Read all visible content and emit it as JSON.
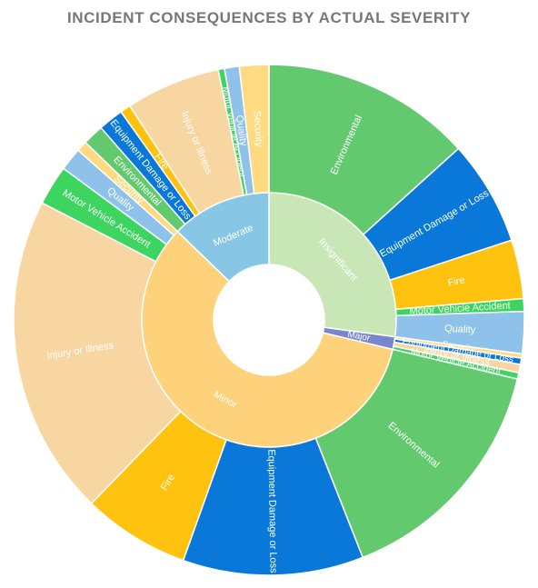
{
  "chart_data": {
    "type": "sunburst",
    "title": "INCIDENT CONSEQUENCES BY ACTUAL SEVERITY",
    "colors": {
      "Insignificant": "#c8e6b6",
      "Major": "#7986cb",
      "Minor": "#fdd27a",
      "Moderate": "#87c6e4",
      "Environmental": "#63c96e",
      "Equipment Damage or Loss": "#0a78d8",
      "Fire": "#ffc20e",
      "Motor Vehicle Accident": "#3ed460",
      "Quality": "#8ec2ea",
      "Security": "#fedb80",
      "Injury or Illness": "#f8d6a2"
    },
    "categories": [
      {
        "name": "Insignificant",
        "children": [
          {
            "name": "Environmental",
            "value": 100
          },
          {
            "name": "Equipment Damage or Loss",
            "value": 50
          },
          {
            "name": "Fire",
            "value": 28
          },
          {
            "name": "Motor Vehicle Accident",
            "value": 6
          },
          {
            "name": "Quality",
            "value": 20
          }
        ]
      },
      {
        "name": "Major",
        "children": [
          {
            "name": "Security",
            "value": 2
          },
          {
            "name": "Equipment Damage or Loss",
            "value": 3
          },
          {
            "name": "Injury or Illness",
            "value": 4
          },
          {
            "name": "Motor Vehicle Accident",
            "value": 3
          }
        ]
      },
      {
        "name": "Minor",
        "children": [
          {
            "name": "Environmental",
            "value": 115
          },
          {
            "name": "Equipment Damage or Loss",
            "value": 86
          },
          {
            "name": "Fire",
            "value": 51
          },
          {
            "name": "Injury or Illness",
            "value": 153
          },
          {
            "name": "Motor Vehicle Accident",
            "value": 19
          },
          {
            "name": "Quality",
            "value": 11
          },
          {
            "name": "Security",
            "value": 5
          }
        ]
      },
      {
        "name": "Moderate",
        "children": [
          {
            "name": "Environmental",
            "value": 10
          },
          {
            "name": "Equipment Damage or Loss",
            "value": 12
          },
          {
            "name": "Fire",
            "value": 5
          },
          {
            "name": "Injury or Illness",
            "value": 45
          },
          {
            "name": "Motor Vehicle Accident",
            "value": 3
          },
          {
            "name": "Quality",
            "value": 7
          },
          {
            "name": "Security",
            "value": 14
          }
        ]
      }
    ]
  }
}
